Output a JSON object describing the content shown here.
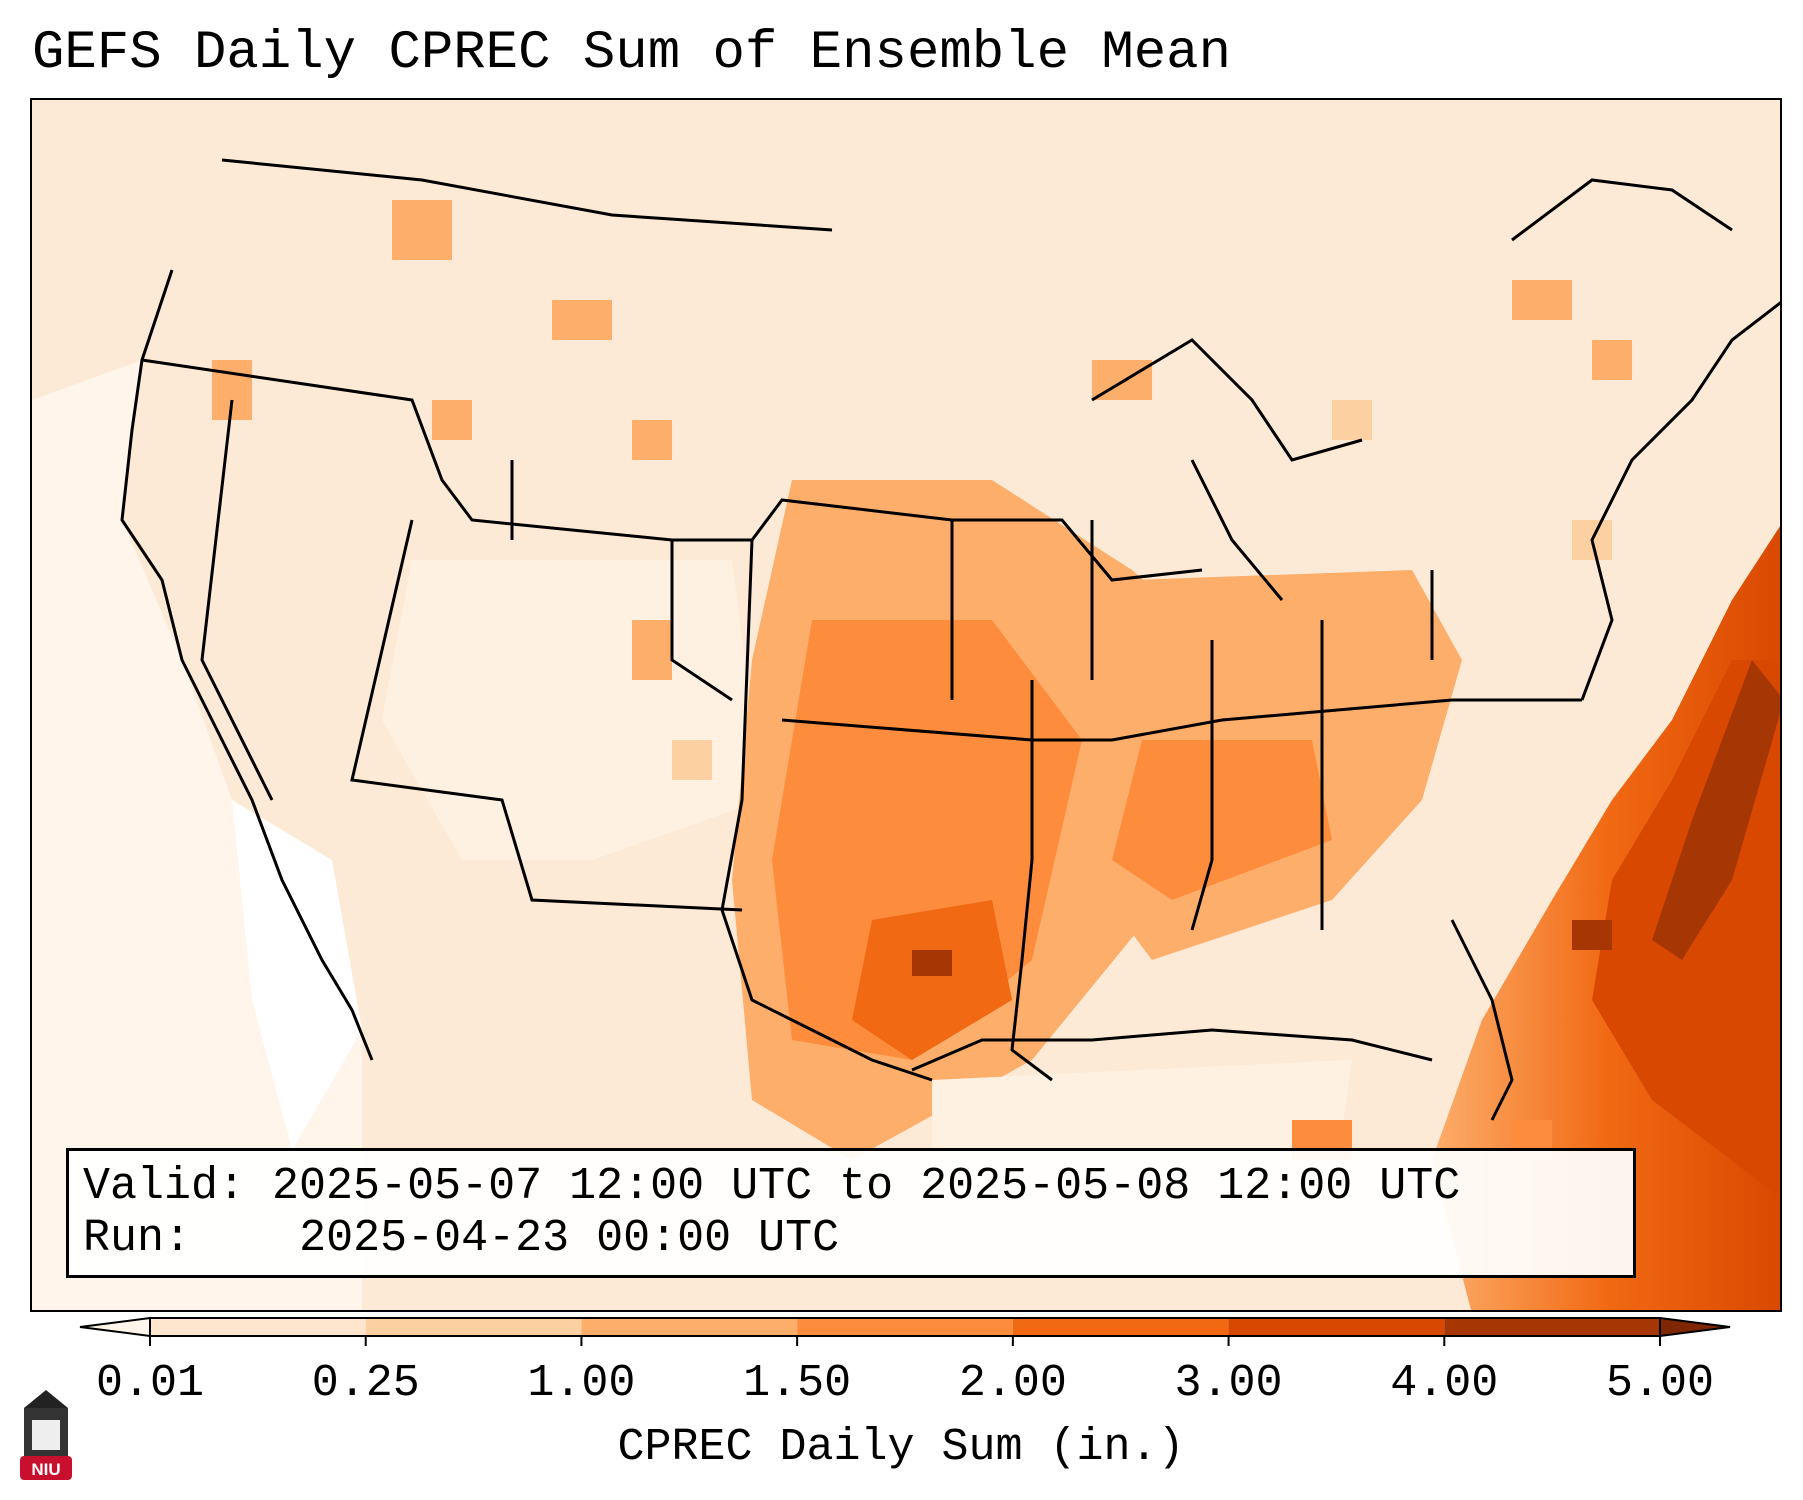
{
  "title": "GEFS Daily CPREC Sum of Ensemble Mean",
  "info": {
    "valid_label": "Valid:",
    "valid_value": "2025-05-07 12:00 UTC to 2025-05-08 12:00 UTC",
    "run_label": "Run:",
    "run_value": "2025-04-23 00:00 UTC"
  },
  "colorbar": {
    "label": "CPREC Daily Sum (in.)",
    "ticks": [
      "0.01",
      "0.25",
      "1.00",
      "1.50",
      "2.00",
      "3.00",
      "4.00",
      "5.00"
    ],
    "colors": [
      "#fff5eb",
      "#fee6ce",
      "#fdd0a2",
      "#fdae6b",
      "#fd8d3c",
      "#f16913",
      "#d94801",
      "#a63603",
      "#7f2704"
    ]
  },
  "logo": {
    "text": "NIU",
    "color": "#c8102e"
  }
}
